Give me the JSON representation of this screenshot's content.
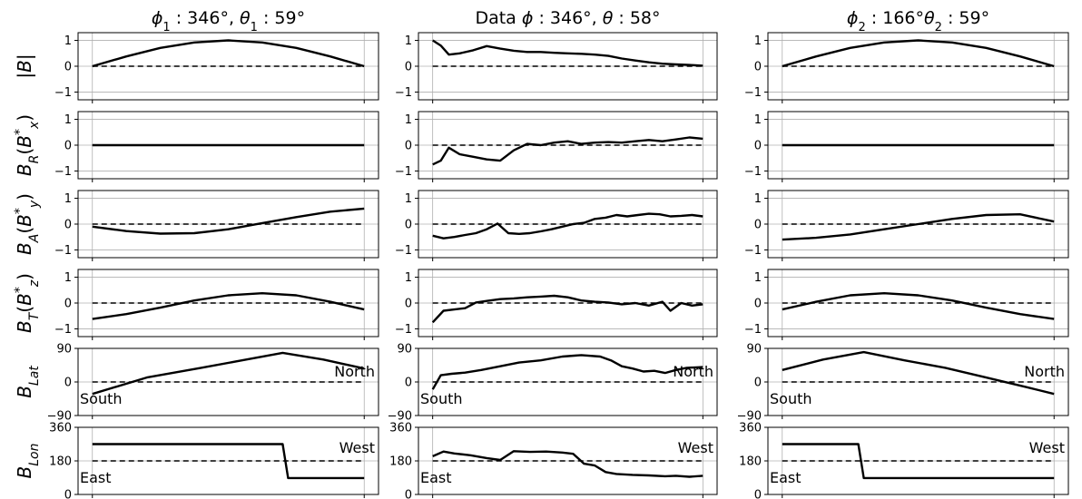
{
  "chart_data": {
    "type": "line",
    "layout": "grid 6 rows x 3 columns, shared x within columns",
    "grid": true,
    "columns": [
      {
        "title": "ϕ₁ : 346°, θ₁ : 59°"
      },
      {
        "title": "Data ϕ : 346°, θ : 58°"
      },
      {
        "title": "ϕ₂ : 166°θ₂ : 59°"
      }
    ],
    "rows": [
      {
        "ylabel": "|B|",
        "ylim": [
          -1.3,
          1.3
        ],
        "yticks": [
          -1,
          0,
          1
        ],
        "ytick_labels": [
          "−1",
          "0",
          "1"
        ],
        "reference": 0
      },
      {
        "ylabel": "B_R(B_x*)",
        "ylim": [
          -1.3,
          1.3
        ],
        "yticks": [
          -1,
          0,
          1
        ],
        "ytick_labels": [
          "−1",
          "0",
          "1"
        ],
        "reference": 0
      },
      {
        "ylabel": "B_A(B_y*)",
        "ylim": [
          -1.3,
          1.3
        ],
        "yticks": [
          -1,
          0,
          1
        ],
        "ytick_labels": [
          "−1",
          "0",
          "1"
        ],
        "reference": 0
      },
      {
        "ylabel": "B_T(B_z*)",
        "ylim": [
          -1.3,
          1.3
        ],
        "yticks": [
          -1,
          0,
          1
        ],
        "ytick_labels": [
          "−1",
          "0",
          "1"
        ],
        "reference": 0
      },
      {
        "ylabel": "B_Lat",
        "ylim": [
          -90,
          90
        ],
        "yticks": [
          -90,
          0,
          90
        ],
        "ytick_labels": [
          "−90",
          "0",
          "90"
        ],
        "reference": 0,
        "annotations": [
          "North",
          "South"
        ]
      },
      {
        "ylabel": "B_Lon",
        "ylim": [
          0,
          360
        ],
        "yticks": [
          0,
          180,
          360
        ],
        "ytick_labels": [
          "0",
          "180",
          "360"
        ],
        "reference": 180,
        "annotations": [
          "West",
          "East"
        ]
      }
    ],
    "series": [
      [
        {
          "x": [
            0,
            0.125,
            0.25,
            0.375,
            0.5,
            0.625,
            0.75,
            0.875,
            1
          ],
          "y": [
            0,
            0.38,
            0.71,
            0.92,
            1.0,
            0.92,
            0.71,
            0.38,
            0
          ]
        },
        {
          "x": [
            0,
            1
          ],
          "y": [
            0,
            0
          ]
        },
        {
          "x": [
            0,
            0.125,
            0.25,
            0.375,
            0.5,
            0.625,
            0.75,
            0.875,
            1
          ],
          "y": [
            -0.1,
            -0.27,
            -0.37,
            -0.35,
            -0.2,
            0.04,
            0.27,
            0.48,
            0.6
          ]
        },
        {
          "x": [
            0,
            0.125,
            0.25,
            0.375,
            0.5,
            0.625,
            0.75,
            0.875,
            1
          ],
          "y": [
            -0.62,
            -0.43,
            -0.18,
            0.1,
            0.3,
            0.38,
            0.3,
            0.05,
            -0.25
          ]
        },
        {
          "x": [
            0,
            0.2,
            0.4,
            0.55,
            0.7,
            0.85,
            1
          ],
          "y": [
            -32,
            12,
            38,
            58,
            78,
            60,
            36
          ]
        },
        {
          "x": [
            0,
            0.7,
            0.72,
            1
          ],
          "y": [
            270,
            270,
            88,
            88
          ]
        }
      ],
      [
        {
          "x": [
            0,
            0.03,
            0.06,
            0.1,
            0.15,
            0.2,
            0.25,
            0.3,
            0.35,
            0.4,
            0.45,
            0.5,
            0.55,
            0.6,
            0.65,
            0.7,
            0.75,
            0.8,
            0.85,
            0.9,
            0.95,
            1
          ],
          "y": [
            1.0,
            0.8,
            0.45,
            0.5,
            0.62,
            0.78,
            0.68,
            0.6,
            0.55,
            0.55,
            0.52,
            0.5,
            0.48,
            0.45,
            0.4,
            0.3,
            0.22,
            0.15,
            0.1,
            0.07,
            0.05,
            0.02
          ]
        },
        {
          "x": [
            0,
            0.03,
            0.06,
            0.1,
            0.15,
            0.2,
            0.25,
            0.3,
            0.35,
            0.4,
            0.45,
            0.5,
            0.55,
            0.6,
            0.65,
            0.7,
            0.75,
            0.8,
            0.85,
            0.9,
            0.95,
            1
          ],
          "y": [
            -0.75,
            -0.6,
            -0.1,
            -0.35,
            -0.45,
            -0.55,
            -0.6,
            -0.2,
            0.05,
            0.0,
            0.1,
            0.15,
            0.05,
            0.1,
            0.12,
            0.1,
            0.15,
            0.2,
            0.15,
            0.22,
            0.3,
            0.25
          ]
        },
        {
          "x": [
            0,
            0.04,
            0.08,
            0.12,
            0.16,
            0.2,
            0.24,
            0.28,
            0.32,
            0.36,
            0.4,
            0.44,
            0.48,
            0.52,
            0.56,
            0.6,
            0.64,
            0.68,
            0.72,
            0.76,
            0.8,
            0.84,
            0.88,
            0.92,
            0.96,
            1
          ],
          "y": [
            -0.45,
            -0.55,
            -0.5,
            -0.42,
            -0.35,
            -0.2,
            0.02,
            -0.35,
            -0.38,
            -0.35,
            -0.28,
            -0.2,
            -0.1,
            0.0,
            0.05,
            0.2,
            0.25,
            0.35,
            0.3,
            0.35,
            0.4,
            0.38,
            0.3,
            0.32,
            0.35,
            0.3
          ]
        },
        {
          "x": [
            0,
            0.04,
            0.08,
            0.12,
            0.16,
            0.2,
            0.25,
            0.3,
            0.35,
            0.4,
            0.45,
            0.5,
            0.55,
            0.6,
            0.65,
            0.7,
            0.75,
            0.8,
            0.85,
            0.88,
            0.92,
            0.96,
            1
          ],
          "y": [
            -0.75,
            -0.3,
            -0.25,
            -0.2,
            0.02,
            0.08,
            0.15,
            0.18,
            0.22,
            0.25,
            0.28,
            0.22,
            0.1,
            0.05,
            0.02,
            -0.05,
            0.0,
            -0.1,
            0.05,
            -0.3,
            0.0,
            -0.1,
            -0.05
          ]
        },
        {
          "x": [
            0,
            0.03,
            0.07,
            0.12,
            0.18,
            0.25,
            0.32,
            0.4,
            0.48,
            0.55,
            0.62,
            0.66,
            0.7,
            0.74,
            0.78,
            0.82,
            0.86,
            0.9,
            0.94,
            1
          ],
          "y": [
            -20,
            18,
            22,
            25,
            32,
            42,
            52,
            58,
            68,
            72,
            68,
            58,
            42,
            36,
            28,
            30,
            24,
            32,
            38,
            40
          ]
        },
        {
          "x": [
            0,
            0.04,
            0.08,
            0.14,
            0.2,
            0.25,
            0.3,
            0.36,
            0.42,
            0.48,
            0.52,
            0.56,
            0.6,
            0.64,
            0.68,
            0.74,
            0.8,
            0.86,
            0.9,
            0.95,
            1
          ],
          "y": [
            205,
            230,
            220,
            210,
            195,
            185,
            232,
            228,
            230,
            225,
            218,
            165,
            155,
            120,
            110,
            105,
            102,
            98,
            100,
            95,
            100
          ]
        }
      ],
      [
        {
          "x": [
            0,
            0.125,
            0.25,
            0.375,
            0.5,
            0.625,
            0.75,
            0.875,
            1
          ],
          "y": [
            0,
            0.38,
            0.71,
            0.92,
            1.0,
            0.92,
            0.71,
            0.38,
            0
          ]
        },
        {
          "x": [
            0,
            1
          ],
          "y": [
            0,
            0
          ]
        },
        {
          "x": [
            0,
            0.125,
            0.25,
            0.375,
            0.5,
            0.625,
            0.75,
            0.875,
            1
          ],
          "y": [
            -0.6,
            -0.53,
            -0.4,
            -0.2,
            0.0,
            0.2,
            0.35,
            0.38,
            0.1
          ]
        },
        {
          "x": [
            0,
            0.125,
            0.25,
            0.375,
            0.5,
            0.625,
            0.75,
            0.875,
            1
          ],
          "y": [
            -0.25,
            0.05,
            0.3,
            0.38,
            0.3,
            0.1,
            -0.18,
            -0.43,
            -0.62
          ]
        },
        {
          "x": [
            0,
            0.15,
            0.3,
            0.45,
            0.6,
            0.75,
            0.9,
            1
          ],
          "y": [
            32,
            60,
            80,
            58,
            38,
            12,
            -14,
            -32
          ]
        },
        {
          "x": [
            0,
            0.28,
            0.3,
            1
          ],
          "y": [
            270,
            270,
            88,
            88
          ]
        }
      ]
    ]
  },
  "annotations": {
    "north": "North",
    "south": "South",
    "west": "West",
    "east": "East"
  }
}
